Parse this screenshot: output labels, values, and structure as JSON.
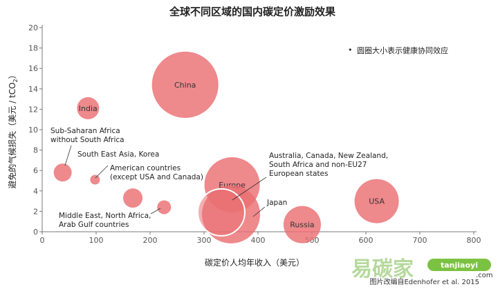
{
  "chart_data": {
    "type": "scatter",
    "title": "全球不同区域的国内碳定价激励效果",
    "xlabel": "碳定价人均年收入（美元）",
    "ylabel": "避免的气候损失（美元 / tCO",
    "ylabel_sub": "2",
    "ylabel_close": "）",
    "xlim": [
      0,
      800
    ],
    "ylim": [
      0,
      20
    ],
    "xticks": [
      0,
      100,
      200,
      300,
      400,
      500,
      600,
      700,
      800
    ],
    "yticks": [
      0,
      2,
      4,
      6,
      8,
      10,
      12,
      14,
      16,
      18,
      20
    ],
    "legend_note": "圆圈大小表示健康协同效应",
    "legend_bullet": "•",
    "grid": false,
    "color": "#ea6f73",
    "points": [
      {
        "label": "China",
        "x": 265,
        "y": 14.4,
        "size": 48
      },
      {
        "label": "India",
        "x": 85,
        "y": 12.1,
        "size": 16
      },
      {
        "label": "",
        "x": 38,
        "y": 5.8,
        "size": 13
      },
      {
        "label": "",
        "x": 98,
        "y": 5.1,
        "size": 7
      },
      {
        "label": "",
        "x": 168,
        "y": 3.3,
        "size": 14
      },
      {
        "label": "",
        "x": 226,
        "y": 2.4,
        "size": 10
      },
      {
        "label": "Europe",
        "x": 352,
        "y": 4.6,
        "size": 40
      },
      {
        "label": "",
        "x": 350,
        "y": 1.7,
        "size": 42
      },
      {
        "label": "",
        "x": 332,
        "y": 1.9,
        "size": 34
      },
      {
        "label": "Russia",
        "x": 482,
        "y": 0.7,
        "size": 27
      },
      {
        "label": "USA",
        "x": 620,
        "y": 3.0,
        "size": 32
      }
    ],
    "annotations": [
      {
        "lines": [
          "Sub-Saharan Africa",
          "without South Africa"
        ]
      },
      {
        "lines": [
          "South East Asia, Korea"
        ]
      },
      {
        "lines": [
          "American countries",
          "(except USA and Canada)"
        ]
      },
      {
        "lines": [
          "Middle East, North Africa,",
          "Arab Gulf countries"
        ]
      },
      {
        "lines": [
          "Australia, Canada, New Zealand,",
          "South Africa and non-EU27",
          "European states"
        ]
      },
      {
        "lines": [
          "Japan"
        ]
      }
    ],
    "credit": "图片改编自Edenhofer et al. 2015"
  },
  "watermark": {
    "cn": "易碳家",
    "en": "tanjiaoyi",
    "suffix": ".com"
  }
}
